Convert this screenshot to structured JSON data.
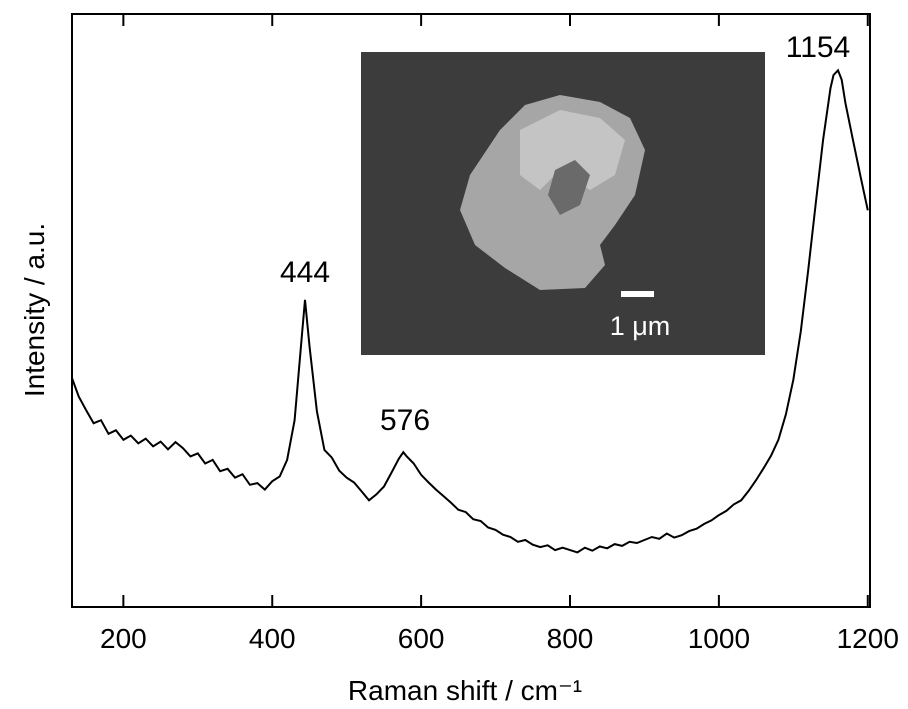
{
  "chart_data": {
    "type": "line",
    "x_label": "Raman shift / cm⁻¹",
    "y_label": "Intensity / a.u.",
    "annotations": [
      "444",
      "576",
      "1154"
    ],
    "color": "#000000",
    "xlim": [
      131,
      1203
    ],
    "ylim": [
      0,
      100
    ],
    "xticks": [
      200,
      400,
      600,
      800,
      1000,
      1200
    ],
    "x": [
      131,
      140,
      150,
      160,
      170,
      180,
      190,
      200,
      210,
      220,
      230,
      240,
      250,
      260,
      270,
      280,
      290,
      300,
      310,
      320,
      330,
      340,
      350,
      360,
      370,
      380,
      390,
      400,
      410,
      420,
      430,
      440,
      444,
      450,
      460,
      470,
      480,
      490,
      500,
      510,
      520,
      530,
      540,
      550,
      560,
      570,
      576,
      580,
      590,
      600,
      610,
      620,
      630,
      640,
      650,
      660,
      670,
      680,
      690,
      700,
      710,
      720,
      730,
      740,
      750,
      760,
      770,
      780,
      790,
      800,
      810,
      820,
      830,
      840,
      850,
      860,
      870,
      880,
      890,
      900,
      910,
      920,
      930,
      940,
      950,
      960,
      970,
      980,
      990,
      1000,
      1010,
      1020,
      1030,
      1040,
      1050,
      1060,
      1070,
      1080,
      1090,
      1100,
      1110,
      1120,
      1130,
      1140,
      1150,
      1154,
      1160,
      1165,
      1170,
      1180,
      1190,
      1200
    ],
    "values": [
      38.6,
      35.5,
      33.2,
      31.0,
      31.5,
      29.2,
      29.8,
      28.2,
      28.9,
      27.6,
      28.4,
      27.1,
      27.9,
      26.6,
      27.8,
      26.8,
      25.4,
      25.9,
      24.2,
      24.8,
      22.9,
      23.3,
      21.8,
      22.4,
      20.6,
      20.9,
      19.8,
      21.2,
      22.0,
      24.8,
      31.5,
      46.0,
      51.8,
      44.0,
      33.0,
      26.5,
      25.2,
      23.0,
      21.8,
      21.0,
      19.5,
      18.0,
      19.0,
      20.3,
      22.6,
      25.0,
      26.1,
      25.5,
      24.2,
      22.3,
      21.0,
      19.8,
      18.7,
      17.6,
      16.4,
      16.0,
      14.8,
      14.5,
      13.4,
      13.0,
      12.2,
      11.8,
      11.0,
      11.3,
      10.5,
      10.1,
      10.4,
      9.6,
      10.0,
      9.6,
      9.2,
      10.0,
      9.5,
      10.2,
      9.9,
      10.6,
      10.3,
      11.0,
      10.8,
      11.3,
      11.8,
      11.5,
      12.4,
      11.7,
      12.1,
      12.8,
      13.2,
      14.0,
      14.6,
      15.5,
      16.2,
      17.3,
      18.0,
      19.6,
      21.4,
      23.4,
      25.5,
      28.2,
      32.5,
      38.3,
      46.5,
      56.8,
      68.0,
      78.8,
      87.5,
      89.7,
      90.5,
      88.9,
      85.0,
      78.8,
      72.8,
      66.9
    ]
  },
  "inset": {
    "scale_label": "1 μm"
  }
}
